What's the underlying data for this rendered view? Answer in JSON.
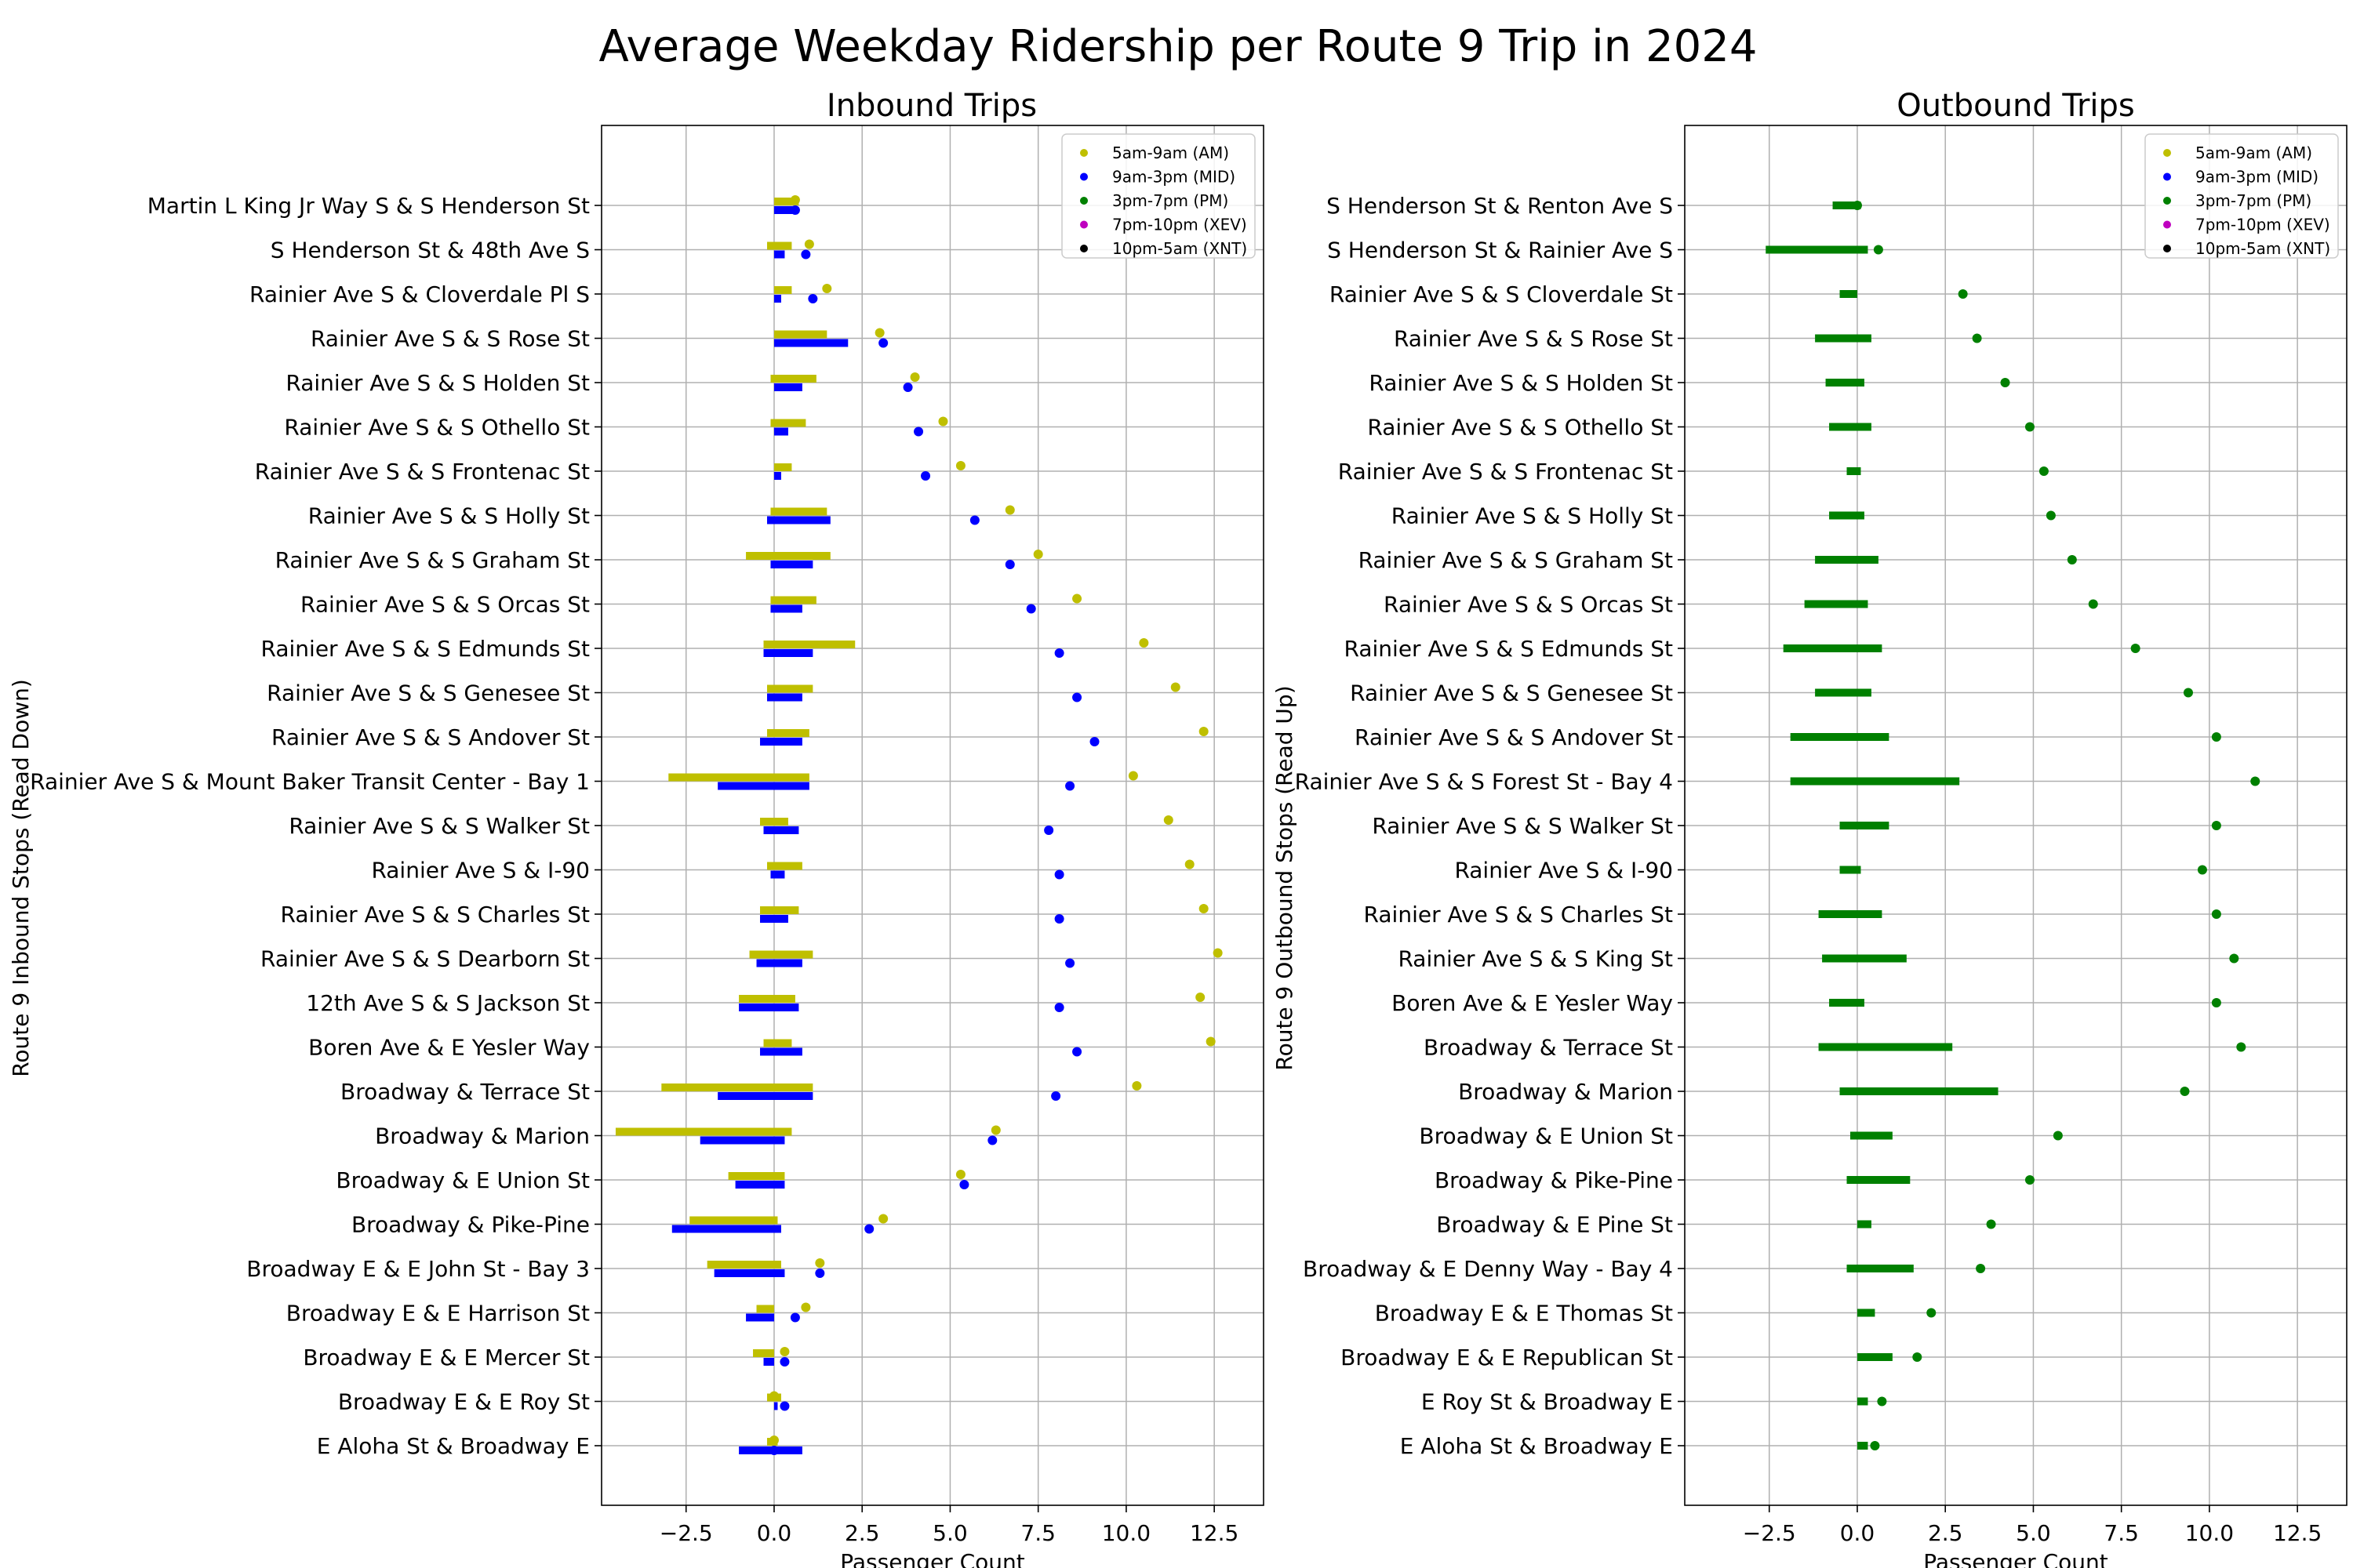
{
  "chart_data": {
    "title": "Average Weekday Ridership per Route 9 Trip in 2024",
    "legend_entries": [
      {
        "label": "5am-9am (AM)",
        "color": "#bfbf00"
      },
      {
        "label": "9am-3pm (MID)",
        "color": "#0000ff"
      },
      {
        "label": "3pm-7pm (PM)",
        "color": "#008000"
      },
      {
        "label": "7pm-10pm (XEV)",
        "color": "#bf00bf"
      },
      {
        "label": "10pm-5am (XNT)",
        "color": "#000000"
      }
    ],
    "panels": [
      {
        "type": "scatter",
        "title": "Inbound Trips",
        "xlabel": "Passenger Count",
        "ylabel": "Route 9 Inbound Stops (Read Down)",
        "xlim": [
          -4.9,
          13.9
        ],
        "xticks": [
          -2.5,
          0.0,
          2.5,
          5.0,
          7.5,
          10.0,
          12.5
        ],
        "xtick_labels": [
          "−2.5",
          "0.0",
          "2.5",
          "5.0",
          "7.5",
          "10.0",
          "12.5"
        ],
        "grid": true,
        "legend_position": "top-right",
        "stops": [
          "Martin L King Jr Way S & S Henderson St",
          "S Henderson St & 48th Ave S",
          "Rainier Ave S & Cloverdale Pl S",
          "Rainier Ave S & S Rose St",
          "Rainier Ave S & S Holden St",
          "Rainier Ave S & S Othello St",
          "Rainier Ave S & S Frontenac St",
          "Rainier Ave S & S Holly St",
          "Rainier Ave S & S Graham St",
          "Rainier Ave S & S Orcas St",
          "Rainier Ave S & S Edmunds St",
          "Rainier Ave S & S Genesee St",
          "Rainier Ave S & S Andover St",
          "Rainier Ave S & Mount Baker Transit Center - Bay 1",
          "Rainier Ave S & S Walker St",
          "Rainier Ave S & I-90",
          "Rainier Ave S & S Charles St",
          "Rainier Ave S & S Dearborn St",
          "12th Ave S & S Jackson St",
          "Boren Ave & E Yesler Way",
          "Broadway & Terrace St",
          "Broadway & Marion",
          "Broadway & E Union St",
          "Broadway & Pike-Pine",
          "Broadway  E & E John St - Bay 3",
          "Broadway  E & E Harrison St",
          "Broadway  E & E Mercer St",
          "Broadway  E & E Roy St",
          "E Aloha St & Broadway  E"
        ],
        "series": [
          {
            "name": "5am-9am (AM)",
            "color": "#bfbf00",
            "points": [
              0.6,
              1.0,
              1.5,
              3.0,
              4.0,
              4.8,
              5.3,
              6.7,
              7.5,
              8.6,
              10.5,
              11.4,
              12.2,
              10.2,
              11.2,
              11.8,
              12.2,
              12.6,
              12.1,
              12.4,
              10.3,
              6.3,
              5.3,
              3.1,
              1.3,
              0.9,
              0.3,
              0.0,
              0.0
            ],
            "segments": [
              [
                0.0,
                0.7
              ],
              [
                -0.2,
                0.5
              ],
              [
                0.0,
                0.5
              ],
              [
                0.0,
                1.5
              ],
              [
                -0.1,
                1.2
              ],
              [
                -0.1,
                0.9
              ],
              [
                0.0,
                0.5
              ],
              [
                -0.1,
                1.5
              ],
              [
                -0.8,
                1.6
              ],
              [
                -0.1,
                1.2
              ],
              [
                -0.3,
                2.3
              ],
              [
                -0.2,
                1.1
              ],
              [
                -0.2,
                1.0
              ],
              [
                -3.0,
                1.0
              ],
              [
                -0.4,
                0.4
              ],
              [
                -0.2,
                0.8
              ],
              [
                -0.4,
                0.7
              ],
              [
                -0.7,
                1.1
              ],
              [
                -1.0,
                0.6
              ],
              [
                -0.3,
                0.5
              ],
              [
                -3.2,
                1.1
              ],
              [
                -4.5,
                0.5
              ],
              [
                -1.3,
                0.3
              ],
              [
                -2.4,
                0.1
              ],
              [
                -1.9,
                0.2
              ],
              [
                -0.5,
                0.0
              ],
              [
                -0.6,
                0.0
              ],
              [
                -0.2,
                0.2
              ],
              [
                -0.2,
                0.1
              ]
            ]
          },
          {
            "name": "9am-3pm (MID)",
            "color": "#0000ff",
            "points": [
              0.6,
              0.9,
              1.1,
              3.1,
              3.8,
              4.1,
              4.3,
              5.7,
              6.7,
              7.3,
              8.1,
              8.6,
              9.1,
              8.4,
              7.8,
              8.1,
              8.1,
              8.4,
              8.1,
              8.6,
              8.0,
              6.2,
              5.4,
              2.7,
              1.3,
              0.6,
              0.3,
              0.3,
              0.0
            ],
            "segments": [
              [
                0.0,
                0.6
              ],
              [
                0.0,
                0.3
              ],
              [
                0.0,
                0.2
              ],
              [
                0.0,
                2.1
              ],
              [
                0.0,
                0.8
              ],
              [
                0.0,
                0.4
              ],
              [
                0.0,
                0.2
              ],
              [
                -0.2,
                1.6
              ],
              [
                -0.1,
                1.1
              ],
              [
                -0.1,
                0.8
              ],
              [
                -0.3,
                1.1
              ],
              [
                -0.2,
                0.8
              ],
              [
                -0.4,
                0.8
              ],
              [
                -1.6,
                1.0
              ],
              [
                -0.3,
                0.7
              ],
              [
                -0.1,
                0.3
              ],
              [
                -0.4,
                0.4
              ],
              [
                -0.5,
                0.8
              ],
              [
                -1.0,
                0.7
              ],
              [
                -0.4,
                0.8
              ],
              [
                -1.6,
                1.1
              ],
              [
                -2.1,
                0.3
              ],
              [
                -1.1,
                0.3
              ],
              [
                -2.9,
                0.2
              ],
              [
                -1.7,
                0.3
              ],
              [
                -0.8,
                0.0
              ],
              [
                -0.3,
                0.0
              ],
              [
                0.0,
                0.1
              ],
              [
                -1.0,
                0.8
              ]
            ]
          },
          {
            "name": "3pm-7pm (PM)",
            "color": "#008000",
            "points": [],
            "segments": []
          },
          {
            "name": "7pm-10pm (XEV)",
            "color": "#bf00bf",
            "points": [],
            "segments": []
          },
          {
            "name": "10pm-5am (XNT)",
            "color": "#000000",
            "points": [],
            "segments": []
          }
        ]
      },
      {
        "type": "scatter",
        "title": "Outbound Trips",
        "xlabel": "Passenger Count",
        "ylabel": "Route 9 Outbound Stops (Read Up)",
        "xlim": [
          -4.9,
          13.9
        ],
        "xticks": [
          -2.5,
          0.0,
          2.5,
          5.0,
          7.5,
          10.0,
          12.5
        ],
        "xtick_labels": [
          "−2.5",
          "0.0",
          "2.5",
          "5.0",
          "7.5",
          "10.0",
          "12.5"
        ],
        "grid": true,
        "legend_position": "top-right",
        "stops": [
          "S Henderson St & Renton Ave S",
          "S Henderson St & Rainier Ave S",
          "Rainier Ave S & S Cloverdale St",
          "Rainier Ave S & S Rose St",
          "Rainier Ave S & S Holden St",
          "Rainier Ave S & S Othello St",
          "Rainier Ave S & S Frontenac St",
          "Rainier Ave S & S Holly St",
          "Rainier Ave S & S Graham St",
          "Rainier Ave S & S Orcas St",
          "Rainier Ave S & S Edmunds St",
          "Rainier Ave S & S Genesee St",
          "Rainier Ave S & S Andover St",
          "Rainier Ave S & S Forest St - Bay 4",
          "Rainier Ave S & S Walker St",
          "Rainier Ave S & I-90",
          "Rainier Ave S & S Charles St",
          "Rainier Ave S & S King St",
          "Boren Ave & E Yesler Way",
          "Broadway & Terrace St",
          "Broadway & Marion",
          "Broadway & E Union St",
          "Broadway & Pike-Pine",
          "Broadway & E Pine St",
          "Broadway & E Denny Way - Bay 4",
          "Broadway  E & E Thomas St",
          "Broadway  E & E Republican St",
          "E Roy St & Broadway  E",
          "E Aloha St & Broadway  E"
        ],
        "series": [
          {
            "name": "5am-9am (AM)",
            "color": "#bfbf00",
            "points": [],
            "segments": []
          },
          {
            "name": "9am-3pm (MID)",
            "color": "#0000ff",
            "points": [],
            "segments": []
          },
          {
            "name": "3pm-7pm (PM)",
            "color": "#008000",
            "points": [
              0.0,
              0.6,
              3.0,
              3.4,
              4.2,
              4.9,
              5.3,
              5.5,
              6.1,
              6.7,
              7.9,
              9.4,
              10.2,
              11.3,
              10.2,
              9.8,
              10.2,
              10.7,
              10.2,
              10.9,
              9.3,
              5.7,
              4.9,
              3.8,
              3.5,
              2.1,
              1.7,
              0.7,
              0.5
            ],
            "segments": [
              [
                -0.7,
                0.1
              ],
              [
                -2.6,
                0.3
              ],
              [
                -0.5,
                0.0
              ],
              [
                -1.2,
                0.4
              ],
              [
                -0.9,
                0.2
              ],
              [
                -0.8,
                0.4
              ],
              [
                -0.3,
                0.1
              ],
              [
                -0.8,
                0.2
              ],
              [
                -1.2,
                0.6
              ],
              [
                -1.5,
                0.3
              ],
              [
                -2.1,
                0.7
              ],
              [
                -1.2,
                0.4
              ],
              [
                -1.9,
                0.9
              ],
              [
                -1.9,
                2.9
              ],
              [
                -0.5,
                0.9
              ],
              [
                -0.5,
                0.1
              ],
              [
                -1.1,
                0.7
              ],
              [
                -1.0,
                1.4
              ],
              [
                -0.8,
                0.2
              ],
              [
                -1.1,
                2.7
              ],
              [
                -0.5,
                4.0
              ],
              [
                -0.2,
                1.0
              ],
              [
                -0.3,
                1.5
              ],
              [
                0.0,
                0.4
              ],
              [
                -0.3,
                1.6
              ],
              [
                0.0,
                0.5
              ],
              [
                0.0,
                1.0
              ],
              [
                0.0,
                0.3
              ],
              [
                0.0,
                0.3
              ]
            ]
          },
          {
            "name": "7pm-10pm (XEV)",
            "color": "#bf00bf",
            "points": [],
            "segments": []
          },
          {
            "name": "10pm-5am (XNT)",
            "color": "#000000",
            "points": [],
            "segments": []
          }
        ]
      }
    ]
  }
}
